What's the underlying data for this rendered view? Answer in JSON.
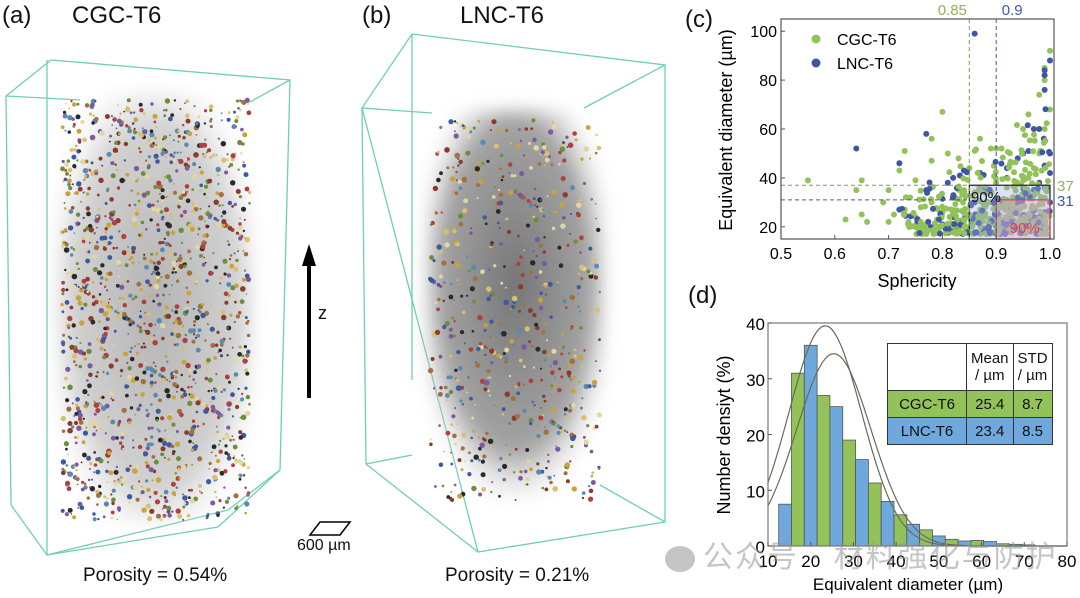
{
  "panels": {
    "a": {
      "label": "(a)",
      "title": "CGC-T6",
      "porosity": "Porosity = 0.54%"
    },
    "b": {
      "label": "(b)",
      "title": "LNC-T6",
      "porosity": "Porosity = 0.21%"
    },
    "c": {
      "label": "(c)"
    },
    "d": {
      "label": "(d)"
    }
  },
  "axis_indicator": {
    "label": "z"
  },
  "scale_bar": {
    "label": "600 µm"
  },
  "colors": {
    "cgc": "#93c15a",
    "lnc": "#3f56a6",
    "lnc_hist": "#6fa8dc",
    "box_green": "#5a9e6f",
    "red": "#e04050"
  },
  "watermark": "公众号 · 材料强化与防护",
  "chart_data": [
    {
      "type": "scatter",
      "xlabel": "Sphericity",
      "ylabel": "Equivalent diameter (µm)",
      "xlim": [
        0.5,
        1.0
      ],
      "ylim": [
        15,
        105
      ],
      "xticks": [
        "0.5",
        "0.6",
        "0.7",
        "0.8",
        "0.9",
        "1.0"
      ],
      "yticks": [
        "20",
        "40",
        "60",
        "80",
        "100"
      ],
      "legend": {
        "position": "top-left",
        "entries": [
          "CGC-T6",
          "LNC-T6"
        ]
      },
      "annotations": {
        "vlines": [
          {
            "x": 0.85,
            "label": "0.85",
            "series": "CGC-T6"
          },
          {
            "x": 0.9,
            "label": "0.9",
            "series": "LNC-T6"
          }
        ],
        "hlines": [
          {
            "y": 37,
            "label": "37",
            "series": "CGC-T6"
          },
          {
            "y": 31,
            "label": "31",
            "series": "LNC-T6"
          }
        ],
        "boxes": [
          {
            "label": "90%",
            "series": "CGC-T6",
            "x": [
              0.85,
              1.0
            ],
            "y": [
              15,
              37
            ]
          },
          {
            "label": "90%",
            "series": "LNC-T6",
            "x": [
              0.9,
              1.0
            ],
            "y": [
              15,
              31
            ]
          }
        ]
      },
      "series": [
        {
          "name": "CGC-T6",
          "points": [
            [
              0.55,
              39
            ],
            [
              0.62,
              23
            ],
            [
              0.65,
              25
            ],
            [
              0.66,
              22
            ],
            [
              0.65,
              39
            ],
            [
              0.64,
              35
            ],
            [
              0.69,
              30
            ],
            [
              0.7,
              35
            ],
            [
              0.72,
              43
            ],
            [
              0.72,
              46
            ],
            [
              0.73,
              51
            ],
            [
              0.75,
              39
            ],
            [
              0.78,
              47
            ],
            [
              0.78,
              56
            ],
            [
              0.8,
              67
            ],
            [
              0.81,
              50
            ],
            [
              0.83,
              48
            ],
            [
              0.85,
              44
            ],
            [
              0.87,
              56
            ],
            [
              0.89,
              52
            ],
            [
              0.9,
              52
            ],
            [
              0.91,
              52
            ],
            [
              0.95,
              60
            ],
            [
              0.96,
              66
            ],
            [
              0.98,
              74
            ],
            [
              0.99,
              80
            ],
            [
              1.0,
              92
            ],
            [
              0.99,
              85
            ],
            [
              0.74,
              32
            ],
            [
              0.76,
              28
            ],
            [
              0.78,
              30
            ],
            [
              0.8,
              26
            ],
            [
              0.82,
              33
            ],
            [
              0.84,
              35
            ],
            [
              0.86,
              34
            ],
            [
              0.88,
              36
            ],
            [
              0.9,
              38
            ],
            [
              0.92,
              36
            ],
            [
              0.94,
              38
            ],
            [
              0.96,
              40
            ],
            [
              0.97,
              44
            ],
            [
              0.98,
              50
            ],
            [
              0.99,
              60
            ],
            [
              1.0,
              68
            ],
            [
              0.7,
              22
            ],
            [
              0.71,
              25
            ],
            [
              0.73,
              27
            ],
            [
              0.75,
              24
            ],
            [
              0.77,
              21
            ],
            [
              0.79,
              23
            ],
            [
              0.81,
              20
            ],
            [
              0.83,
              22
            ],
            [
              0.85,
              25
            ],
            [
              0.87,
              27
            ],
            [
              0.89,
              30
            ],
            [
              0.91,
              28
            ],
            [
              0.93,
              26
            ],
            [
              0.95,
              24
            ],
            [
              0.97,
              22
            ],
            [
              0.99,
              24
            ]
          ]
        },
        {
          "name": "LNC-T6",
          "points": [
            [
              0.86,
              99
            ],
            [
              0.99,
              84
            ],
            [
              0.99,
              82
            ],
            [
              1.0,
              88
            ],
            [
              0.99,
              76
            ],
            [
              0.97,
              60
            ],
            [
              0.96,
              51
            ],
            [
              0.94,
              48
            ],
            [
              0.92,
              44
            ],
            [
              0.87,
              42
            ],
            [
              0.84,
              43
            ],
            [
              0.82,
              40
            ],
            [
              0.81,
              38
            ],
            [
              0.77,
              35
            ],
            [
              0.72,
              27
            ],
            [
              0.64,
              52
            ],
            [
              0.72,
              46
            ],
            [
              0.77,
              58
            ],
            [
              0.92,
              40
            ],
            [
              0.95,
              50
            ],
            [
              0.98,
              60
            ],
            [
              0.99,
              55
            ],
            [
              1.0,
              50
            ],
            [
              0.99,
              45
            ],
            [
              1.0,
              42
            ],
            [
              0.88,
              34
            ],
            [
              0.86,
              30
            ],
            [
              0.84,
              26
            ],
            [
              0.82,
              24
            ],
            [
              0.8,
              21
            ],
            [
              0.9,
              26
            ],
            [
              0.92,
              30
            ],
            [
              0.94,
              32
            ],
            [
              0.96,
              34
            ],
            [
              0.98,
              38
            ],
            [
              0.99,
              36
            ],
            [
              1.0,
              30
            ],
            [
              0.99,
              26
            ],
            [
              0.97,
              24
            ],
            [
              0.95,
              21
            ]
          ]
        }
      ]
    },
    {
      "type": "bar",
      "xlabel": "Equivalent diameter (µm)",
      "ylabel": "Number densiyt (%)",
      "xlim": [
        10,
        80
      ],
      "ylim": [
        0,
        40
      ],
      "xticks": [
        "10",
        "20",
        "30",
        "40",
        "50",
        "60",
        "70",
        "80"
      ],
      "yticks": [
        "0",
        "10",
        "20",
        "30",
        "40"
      ],
      "bin_edges": [
        12.5,
        18.5,
        24.5,
        30.5,
        36.5,
        42.5,
        48.5,
        54.5,
        60.5,
        66.5,
        72.5
      ],
      "series": [
        {
          "name": "LNC-T6",
          "values": [
            7.5,
            36,
            25,
            15.5,
            8,
            3.9,
            1.8,
            0.9,
            0.8,
            0.3
          ]
        },
        {
          "name": "CGC-T6",
          "values": [
            31,
            27,
            19,
            11.3,
            5.6,
            2.9,
            1.2,
            1.0,
            0.4,
            0.2
          ]
        }
      ],
      "fits": [
        {
          "name": "CGC-T6 normal fit",
          "mean": 25.4,
          "std": 8.7,
          "peak": 34.5
        },
        {
          "name": "LNC-T6 normal fit",
          "mean": 23.4,
          "std": 8.5,
          "peak": 39.5
        }
      ],
      "table": {
        "header": [
          "",
          "Mean\n/ µm",
          "STD\n/ µm"
        ],
        "rows": [
          {
            "name": "CGC-T6",
            "mean": "25.4",
            "std": "8.7"
          },
          {
            "name": "LNC-T6",
            "mean": "23.4",
            "std": "8.5"
          }
        ]
      }
    }
  ]
}
